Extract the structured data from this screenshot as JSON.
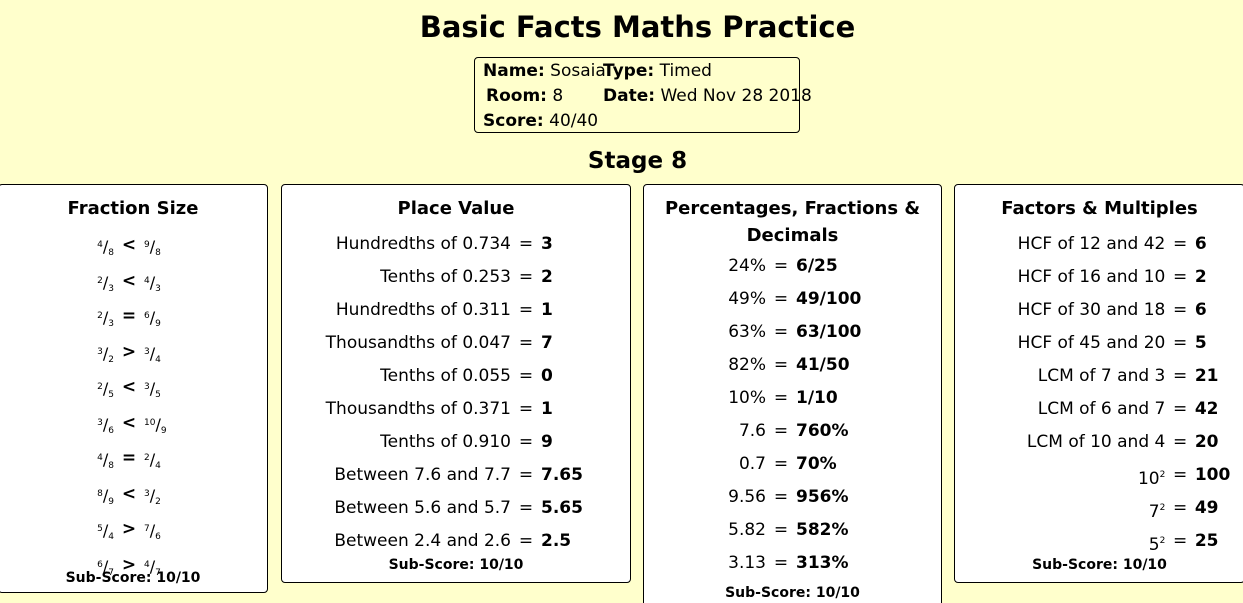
{
  "header": {
    "title": "Basic Facts Maths Practice",
    "stage": "Stage 8"
  },
  "info": {
    "name_label": "Name:",
    "name": "Sosaia",
    "type_label": "Type:",
    "type": "Timed",
    "room_label": "Room:",
    "room": "8",
    "date_label": "Date:",
    "date": "Wed Nov 28 2018",
    "score_label": "Score:",
    "score": "40/40"
  },
  "fraction_size": {
    "title": "Fraction Size",
    "rows": [
      {
        "a_num": "4",
        "a_den": "8",
        "sym": "<",
        "b_num": "9",
        "b_den": "8"
      },
      {
        "a_num": "2",
        "a_den": "3",
        "sym": "<",
        "b_num": "4",
        "b_den": "3"
      },
      {
        "a_num": "2",
        "a_den": "3",
        "sym": "=",
        "b_num": "6",
        "b_den": "9"
      },
      {
        "a_num": "3",
        "a_den": "2",
        "sym": ">",
        "b_num": "3",
        "b_den": "4"
      },
      {
        "a_num": "2",
        "a_den": "5",
        "sym": "<",
        "b_num": "3",
        "b_den": "5"
      },
      {
        "a_num": "3",
        "a_den": "6",
        "sym": "<",
        "b_num": "10",
        "b_den": "9"
      },
      {
        "a_num": "4",
        "a_den": "8",
        "sym": "=",
        "b_num": "2",
        "b_den": "4"
      },
      {
        "a_num": "8",
        "a_den": "9",
        "sym": "<",
        "b_num": "3",
        "b_den": "2"
      },
      {
        "a_num": "5",
        "a_den": "4",
        "sym": ">",
        "b_num": "7",
        "b_den": "6"
      },
      {
        "a_num": "6",
        "a_den": "7",
        "sym": ">",
        "b_num": "4",
        "b_den": "7"
      }
    ],
    "subscore": "Sub-Score: 10/10"
  },
  "place_value": {
    "title": "Place Value",
    "rows": [
      {
        "q": "Hundredths of 0.734",
        "eq": "=",
        "a": "3"
      },
      {
        "q": "Tenths of 0.253",
        "eq": "=",
        "a": "2"
      },
      {
        "q": "Hundredths of 0.311",
        "eq": "=",
        "a": "1"
      },
      {
        "q": "Thousandths of 0.047",
        "eq": "=",
        "a": "7"
      },
      {
        "q": "Tenths of 0.055",
        "eq": "=",
        "a": "0"
      },
      {
        "q": "Thousandths of 0.371",
        "eq": "=",
        "a": "1"
      },
      {
        "q": "Tenths of 0.910",
        "eq": "=",
        "a": "9"
      },
      {
        "q": "Between 7.6 and 7.7",
        "eq": "=",
        "a": "7.65"
      },
      {
        "q": "Between 5.6 and 5.7",
        "eq": "=",
        "a": "5.65"
      },
      {
        "q": "Between 2.4 and 2.6",
        "eq": "=",
        "a": "2.5"
      }
    ],
    "subscore": "Sub-Score: 10/10"
  },
  "percentages": {
    "title_line1": "Percentages, Fractions &",
    "title_line2": "Decimals",
    "rows": [
      {
        "q": "24%",
        "eq": "=",
        "a": "6/25"
      },
      {
        "q": "49%",
        "eq": "=",
        "a": "49/100"
      },
      {
        "q": "63%",
        "eq": "=",
        "a": "63/100"
      },
      {
        "q": "82%",
        "eq": "=",
        "a": "41/50"
      },
      {
        "q": "10%",
        "eq": "=",
        "a": "1/10"
      },
      {
        "q": "7.6",
        "eq": "=",
        "a": "760%"
      },
      {
        "q": "0.7",
        "eq": "=",
        "a": "70%"
      },
      {
        "q": "9.56",
        "eq": "=",
        "a": "956%"
      },
      {
        "q": "5.82",
        "eq": "=",
        "a": "582%"
      },
      {
        "q": "3.13",
        "eq": "=",
        "a": "313%"
      }
    ],
    "subscore": "Sub-Score: 10/10"
  },
  "factors": {
    "title": "Factors & Multiples",
    "rows": [
      {
        "q": "HCF of 12 and 42",
        "eq": "=",
        "a": "6"
      },
      {
        "q": "HCF of 16 and 10",
        "eq": "=",
        "a": "2"
      },
      {
        "q": "HCF of 30 and 18",
        "eq": "=",
        "a": "6"
      },
      {
        "q": "HCF of 45 and 20",
        "eq": "=",
        "a": "5"
      },
      {
        "q": "LCM of 7 and 3",
        "eq": "=",
        "a": "21"
      },
      {
        "q": "LCM of 6 and 7",
        "eq": "=",
        "a": "42"
      },
      {
        "q": "LCM of 10 and 4",
        "eq": "=",
        "a": "20"
      },
      {
        "q": "10",
        "sup": "2",
        "eq": "=",
        "a": "100"
      },
      {
        "q": "7",
        "sup": "2",
        "eq": "=",
        "a": "49"
      },
      {
        "q": "5",
        "sup": "2",
        "eq": "=",
        "a": "25"
      }
    ],
    "subscore": "Sub-Score: 10/10"
  }
}
